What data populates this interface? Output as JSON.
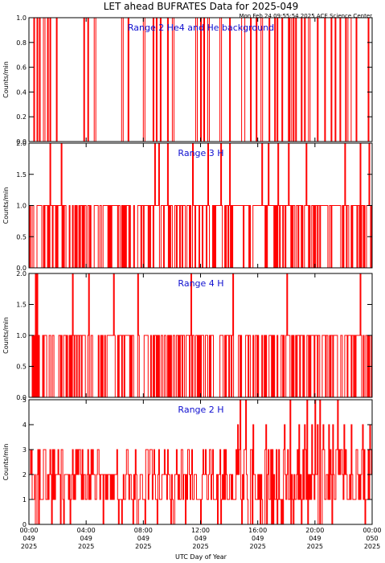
{
  "header": {
    "title": "LET ahead BUFRATES Data for 2025-049",
    "subtitle": "Mon Feb 24 09:55:54 2025 ACE Science Center"
  },
  "x_axis": {
    "label": "UTC Day of Year",
    "range_hours": [
      0,
      24
    ],
    "ticks": [
      {
        "hour": 0,
        "lines": [
          "00:00",
          "049",
          "2025"
        ]
      },
      {
        "hour": 4,
        "lines": [
          "04:00",
          "049",
          "2025"
        ]
      },
      {
        "hour": 8,
        "lines": [
          "08:00",
          "049",
          "2025"
        ]
      },
      {
        "hour": 12,
        "lines": [
          "12:00",
          "049",
          "2025"
        ]
      },
      {
        "hour": 16,
        "lines": [
          "16:00",
          "049",
          "2025"
        ]
      },
      {
        "hour": 20,
        "lines": [
          "20:00",
          "049",
          "2025"
        ]
      },
      {
        "hour": 24,
        "lines": [
          "00:00",
          "050",
          "2025"
        ]
      }
    ]
  },
  "colors": {
    "line": "#ff0000",
    "title": "#1010d0",
    "axis": "#000000"
  },
  "chart_data": [
    {
      "type": "line",
      "title": "Range 2 He4 and He background",
      "ylabel": "Counts/min",
      "ylim": [
        0,
        1
      ],
      "yticks": [
        "0.0",
        "0.2",
        "0.4",
        "0.6",
        "0.8",
        "1.0"
      ],
      "ytick_values": [
        0,
        0.2,
        0.4,
        0.6,
        0.8,
        1.0
      ],
      "series": [
        {
          "max_count": 1,
          "nonzero_hours": [
            0.35,
            0.55,
            0.72,
            1.02,
            1.05,
            1.28,
            1.45,
            1.9,
            3.85,
            4.1,
            4.58,
            4.62,
            6.52,
            6.55,
            6.95,
            8.02,
            8.05,
            8.72,
            8.9,
            9.2,
            9.72,
            10.05,
            10.1,
            11.7,
            11.72,
            11.75,
            12.05,
            12.25,
            12.55,
            12.58,
            13.4,
            13.45,
            14.05,
            14.08,
            14.9,
            14.95,
            15.0,
            15.05,
            15.55,
            15.95,
            16.25,
            16.3,
            16.8,
            16.85,
            17.25,
            17.4,
            17.75,
            18.2,
            18.28,
            18.3,
            18.35,
            18.55,
            18.7,
            19.1,
            19.3,
            19.6,
            19.65,
            20.2,
            20.7,
            21.2,
            21.45,
            21.48,
            21.8,
            22.2,
            22.35,
            22.38,
            22.42,
            22.45,
            22.5,
            22.55,
            22.9,
            23.8
          ]
        }
      ]
    },
    {
      "type": "line",
      "title": "Range 3 H",
      "ylabel": "Counts/min",
      "ylim": [
        0,
        2
      ],
      "yticks": [
        "0.0",
        "0.5",
        "1.0",
        "1.5",
        "2.0"
      ],
      "ytick_values": [
        0,
        0.5,
        1.0,
        1.5,
        2.0
      ],
      "series": [
        {
          "max_count": 2,
          "twos_hours": [
            1.45,
            2.25,
            8.8,
            9.1,
            9.7,
            11.45,
            12.55,
            13.45,
            14.05,
            16.3,
            16.75,
            17.45,
            18.2,
            19.4,
            22.15,
            23.2,
            23.85
          ],
          "ones_density": 0.62
        }
      ]
    },
    {
      "type": "line",
      "title": "Range 4 H",
      "ylabel": "Counts/min",
      "ylim": [
        0,
        2
      ],
      "yticks": [
        "0.0",
        "0.5",
        "1.0",
        "1.5",
        "2.0"
      ],
      "ytick_values": [
        0,
        0.5,
        1.0,
        1.5,
        2.0
      ],
      "series": [
        {
          "max_count": 2,
          "twos_hours": [
            0.45,
            0.55,
            3.05,
            4.2,
            5.95,
            7.65,
            11.35,
            14.3,
            18.05,
            23.2
          ],
          "ones_density": 0.5
        }
      ]
    },
    {
      "type": "line",
      "title": "Range 2 H",
      "ylabel": "Counts/min",
      "ylim": [
        0,
        5
      ],
      "yticks": [
        "0",
        "1",
        "2",
        "3",
        "4",
        "5"
      ],
      "ytick_values": [
        0,
        1,
        2,
        3,
        4,
        5
      ],
      "series": [
        {
          "max_count": 5,
          "fives_hours": [
            14.8,
            15.2,
            18.3,
            19.5,
            20.05,
            20.4,
            21.6
          ],
          "fours_hours": [
            14.6,
            15.7,
            16.6,
            17.9,
            18.9,
            19.3,
            19.8,
            20.2,
            20.6,
            21.0,
            21.3,
            22.1,
            22.6,
            23.4,
            23.9
          ],
          "threes_density": 0.18,
          "twos_density": 0.45,
          "ones_density": 0.75
        }
      ]
    }
  ]
}
